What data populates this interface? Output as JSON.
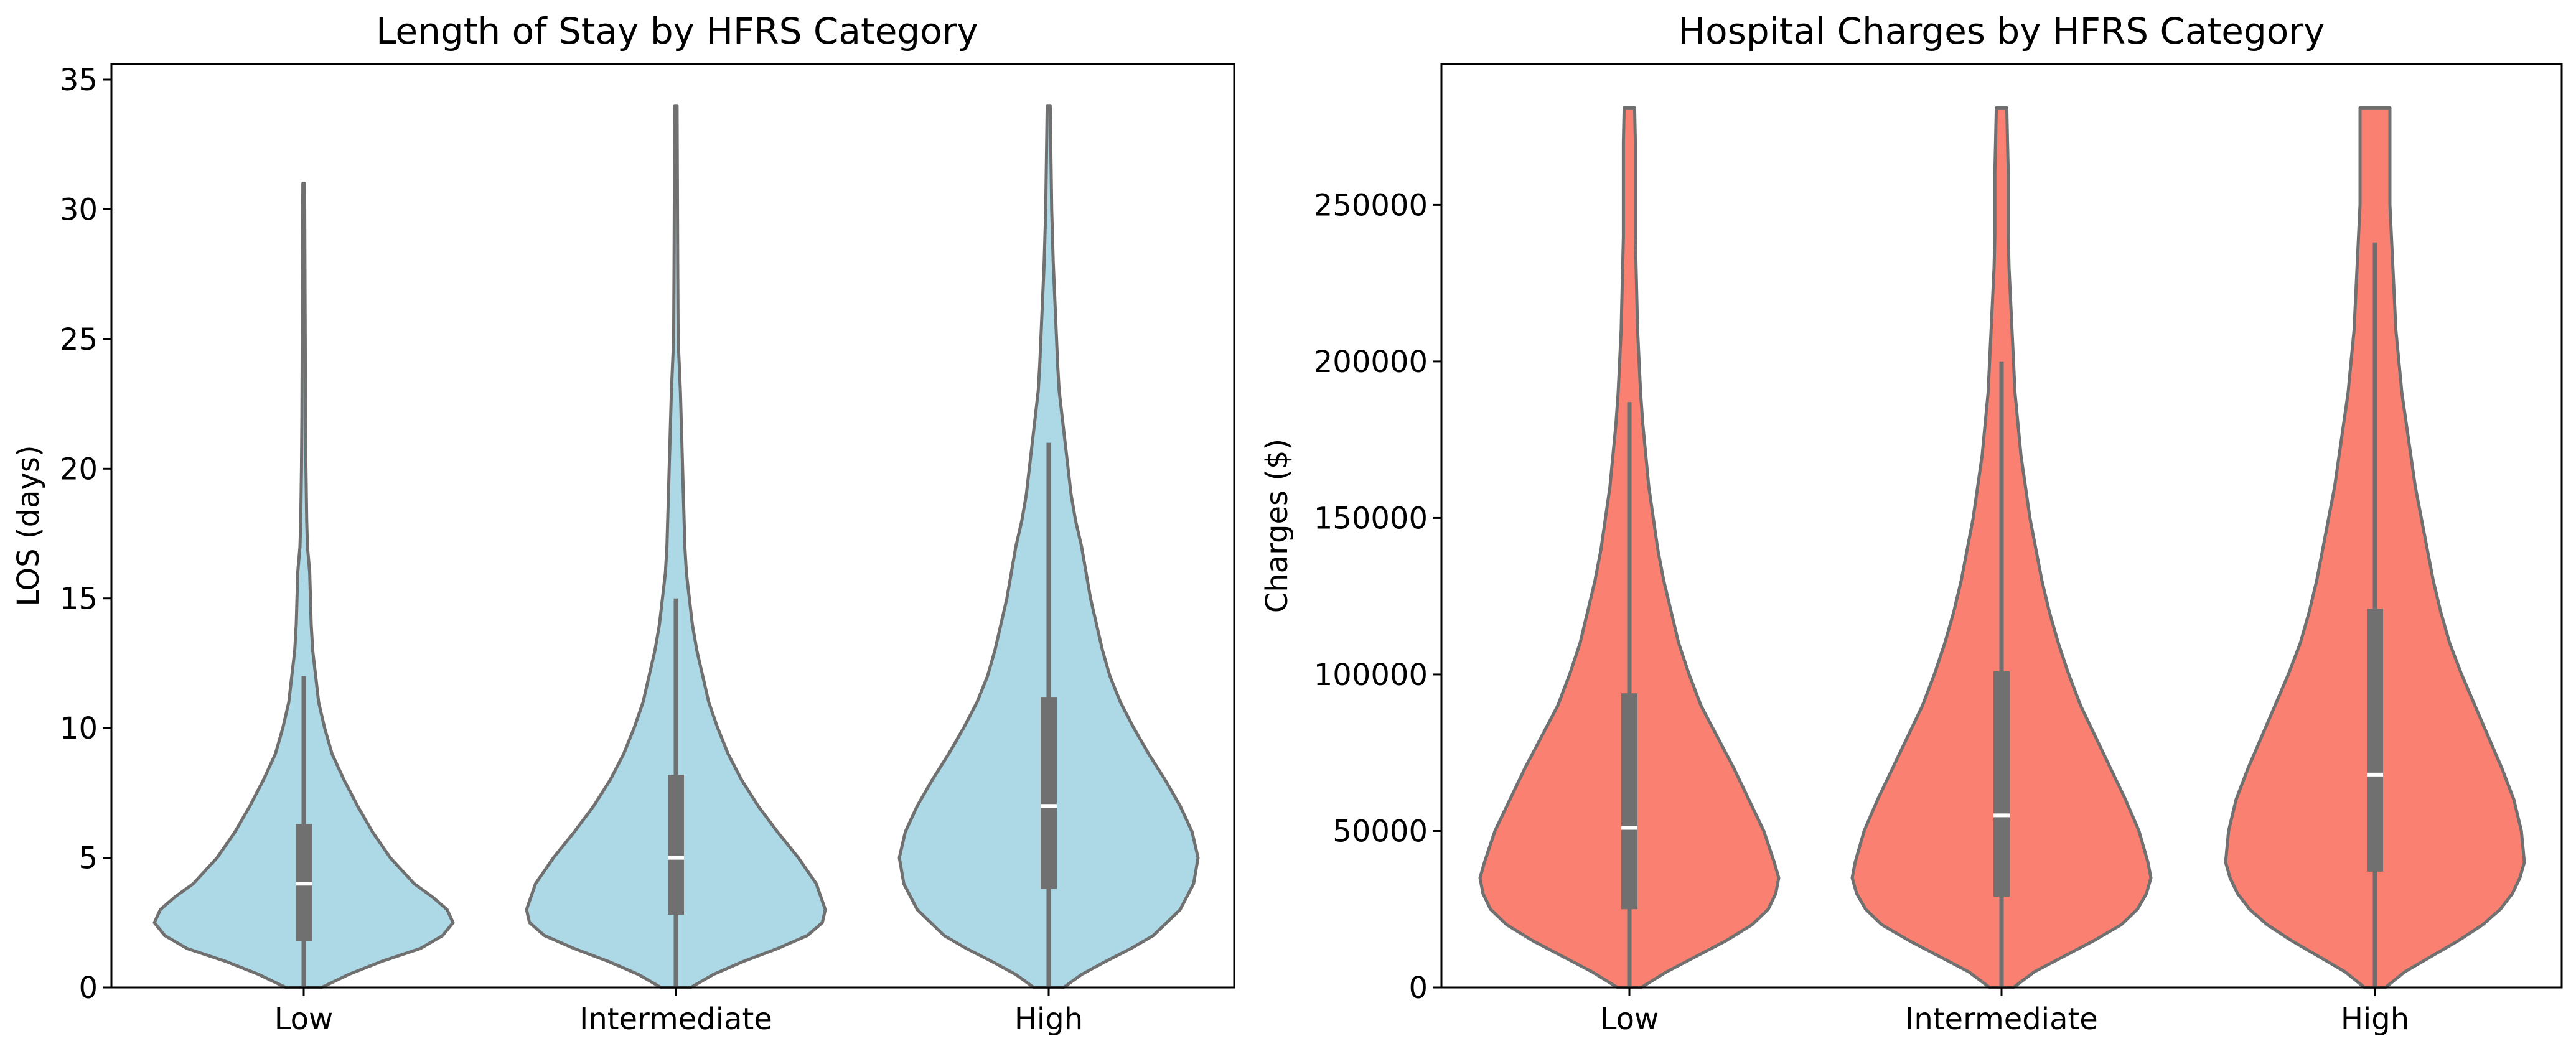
{
  "chart_data": [
    {
      "type": "violin",
      "title": "Length of Stay by HFRS Category",
      "xlabel": "",
      "ylabel": "LOS (days)",
      "ylim": [
        0,
        35.6
      ],
      "yticks": [
        0,
        5,
        10,
        15,
        20,
        25,
        30,
        35
      ],
      "ytick_labels": [
        "0",
        "5",
        "10",
        "15",
        "20",
        "25",
        "30",
        "35"
      ],
      "categories": [
        "Low",
        "Intermediate",
        "High"
      ],
      "fill_color": "#add8e6",
      "edge_color": "#707070",
      "series": [
        {
          "name": "Low",
          "whisker_low": 0,
          "q1": 1.8,
          "median": 4.0,
          "q3": 6.3,
          "whisker_high": 12.0,
          "max": 31,
          "density": [
            [
              0,
              0.12
            ],
            [
              0.5,
              0.3
            ],
            [
              1,
              0.52
            ],
            [
              1.5,
              0.78
            ],
            [
              2,
              0.93
            ],
            [
              2.5,
              1.0
            ],
            [
              3,
              0.96
            ],
            [
              3.5,
              0.86
            ],
            [
              4,
              0.74
            ],
            [
              5,
              0.58
            ],
            [
              6,
              0.46
            ],
            [
              7,
              0.36
            ],
            [
              8,
              0.27
            ],
            [
              9,
              0.19
            ],
            [
              10,
              0.14
            ],
            [
              11,
              0.1
            ],
            [
              12,
              0.08
            ],
            [
              13,
              0.06
            ],
            [
              14,
              0.05
            ],
            [
              15,
              0.045
            ],
            [
              16,
              0.04
            ],
            [
              17,
              0.025
            ],
            [
              18,
              0.02
            ],
            [
              20,
              0.015
            ],
            [
              22,
              0.012
            ],
            [
              25,
              0.01
            ],
            [
              28,
              0.008
            ],
            [
              31,
              0.006
            ]
          ]
        },
        {
          "name": "Intermediate",
          "whisker_low": 0,
          "q1": 2.8,
          "median": 5.0,
          "q3": 8.2,
          "whisker_high": 15.0,
          "max": 34,
          "density": [
            [
              0,
              0.1
            ],
            [
              0.5,
              0.25
            ],
            [
              1,
              0.45
            ],
            [
              1.5,
              0.68
            ],
            [
              2,
              0.88
            ],
            [
              2.5,
              0.98
            ],
            [
              3,
              1.0
            ],
            [
              4,
              0.94
            ],
            [
              5,
              0.82
            ],
            [
              6,
              0.68
            ],
            [
              7,
              0.55
            ],
            [
              8,
              0.44
            ],
            [
              9,
              0.35
            ],
            [
              10,
              0.28
            ],
            [
              11,
              0.22
            ],
            [
              12,
              0.18
            ],
            [
              13,
              0.14
            ],
            [
              14,
              0.11
            ],
            [
              15,
              0.09
            ],
            [
              16,
              0.07
            ],
            [
              17,
              0.06
            ],
            [
              19,
              0.05
            ],
            [
              21,
              0.04
            ],
            [
              23,
              0.03
            ],
            [
              25,
              0.015
            ],
            [
              28,
              0.012
            ],
            [
              31,
              0.01
            ],
            [
              34,
              0.008
            ]
          ]
        },
        {
          "name": "High",
          "whisker_low": 0,
          "q1": 3.8,
          "median": 7.0,
          "q3": 11.2,
          "whisker_high": 21.0,
          "max": 34,
          "density": [
            [
              0,
              0.1
            ],
            [
              0.5,
              0.22
            ],
            [
              1,
              0.38
            ],
            [
              1.5,
              0.55
            ],
            [
              2,
              0.7
            ],
            [
              3,
              0.88
            ],
            [
              4,
              0.97
            ],
            [
              5,
              1.0
            ],
            [
              6,
              0.96
            ],
            [
              7,
              0.88
            ],
            [
              8,
              0.78
            ],
            [
              9,
              0.67
            ],
            [
              10,
              0.57
            ],
            [
              11,
              0.48
            ],
            [
              12,
              0.41
            ],
            [
              13,
              0.36
            ],
            [
              14,
              0.32
            ],
            [
              15,
              0.28
            ],
            [
              16,
              0.25
            ],
            [
              17,
              0.22
            ],
            [
              18,
              0.18
            ],
            [
              19,
              0.15
            ],
            [
              20,
              0.13
            ],
            [
              21,
              0.11
            ],
            [
              22,
              0.09
            ],
            [
              23,
              0.07
            ],
            [
              24,
              0.06
            ],
            [
              26,
              0.045
            ],
            [
              28,
              0.03
            ],
            [
              30,
              0.02
            ],
            [
              32,
              0.015
            ],
            [
              34,
              0.01
            ]
          ]
        }
      ]
    },
    {
      "type": "violin",
      "title": "Hospital Charges by HFRS Category",
      "xlabel": "",
      "ylabel": "Charges ($)",
      "ylim": [
        0,
        295000
      ],
      "yticks": [
        0,
        50000,
        100000,
        150000,
        200000,
        250000
      ],
      "ytick_labels": [
        "0",
        "50000",
        "100000",
        "150000",
        "200000",
        "250000"
      ],
      "categories": [
        "Low",
        "Intermediate",
        "High"
      ],
      "fill_color": "#fa8072",
      "edge_color": "#707070",
      "series": [
        {
          "name": "Low",
          "whisker_low": 0,
          "q1": 25000,
          "median": 51000,
          "q3": 94000,
          "whisker_high": 187000,
          "max": 281000,
          "density": [
            [
              0,
              0.08
            ],
            [
              5000,
              0.25
            ],
            [
              10000,
              0.45
            ],
            [
              15000,
              0.65
            ],
            [
              20000,
              0.82
            ],
            [
              25000,
              0.93
            ],
            [
              30000,
              0.98
            ],
            [
              35000,
              1.0
            ],
            [
              40000,
              0.97
            ],
            [
              50000,
              0.9
            ],
            [
              60000,
              0.8
            ],
            [
              70000,
              0.7
            ],
            [
              80000,
              0.59
            ],
            [
              90000,
              0.48
            ],
            [
              100000,
              0.4
            ],
            [
              110000,
              0.33
            ],
            [
              120000,
              0.28
            ],
            [
              130000,
              0.23
            ],
            [
              140000,
              0.19
            ],
            [
              150000,
              0.16
            ],
            [
              160000,
              0.13
            ],
            [
              170000,
              0.11
            ],
            [
              180000,
              0.09
            ],
            [
              190000,
              0.075
            ],
            [
              200000,
              0.065
            ],
            [
              210000,
              0.055
            ],
            [
              220000,
              0.05
            ],
            [
              230000,
              0.045
            ],
            [
              240000,
              0.04
            ],
            [
              250000,
              0.04
            ],
            [
              260000,
              0.04
            ],
            [
              270000,
              0.04
            ],
            [
              281000,
              0.035
            ]
          ]
        },
        {
          "name": "Intermediate",
          "whisker_low": 0,
          "q1": 29000,
          "median": 55000,
          "q3": 101000,
          "whisker_high": 200000,
          "max": 281000,
          "density": [
            [
              0,
              0.08
            ],
            [
              5000,
              0.22
            ],
            [
              10000,
              0.42
            ],
            [
              15000,
              0.62
            ],
            [
              20000,
              0.8
            ],
            [
              25000,
              0.91
            ],
            [
              30000,
              0.97
            ],
            [
              35000,
              1.0
            ],
            [
              40000,
              0.98
            ],
            [
              50000,
              0.92
            ],
            [
              60000,
              0.83
            ],
            [
              70000,
              0.73
            ],
            [
              80000,
              0.63
            ],
            [
              90000,
              0.53
            ],
            [
              100000,
              0.45
            ],
            [
              110000,
              0.38
            ],
            [
              120000,
              0.32
            ],
            [
              130000,
              0.27
            ],
            [
              140000,
              0.23
            ],
            [
              150000,
              0.19
            ],
            [
              160000,
              0.16
            ],
            [
              170000,
              0.13
            ],
            [
              180000,
              0.11
            ],
            [
              190000,
              0.09
            ],
            [
              200000,
              0.08
            ],
            [
              210000,
              0.07
            ],
            [
              220000,
              0.06
            ],
            [
              230000,
              0.05
            ],
            [
              240000,
              0.045
            ],
            [
              250000,
              0.045
            ],
            [
              260000,
              0.045
            ],
            [
              270000,
              0.04
            ],
            [
              281000,
              0.035
            ]
          ]
        },
        {
          "name": "High",
          "whisker_low": 0,
          "q1": 37000,
          "median": 68000,
          "q3": 121000,
          "whisker_high": 238000,
          "max": 281000,
          "density": [
            [
              0,
              0.07
            ],
            [
              5000,
              0.2
            ],
            [
              10000,
              0.38
            ],
            [
              15000,
              0.56
            ],
            [
              20000,
              0.72
            ],
            [
              25000,
              0.84
            ],
            [
              30000,
              0.92
            ],
            [
              35000,
              0.97
            ],
            [
              40000,
              1.0
            ],
            [
              50000,
              0.98
            ],
            [
              60000,
              0.93
            ],
            [
              70000,
              0.85
            ],
            [
              80000,
              0.76
            ],
            [
              90000,
              0.67
            ],
            [
              100000,
              0.58
            ],
            [
              110000,
              0.5
            ],
            [
              120000,
              0.44
            ],
            [
              130000,
              0.39
            ],
            [
              140000,
              0.35
            ],
            [
              150000,
              0.31
            ],
            [
              160000,
              0.27
            ],
            [
              170000,
              0.24
            ],
            [
              180000,
              0.21
            ],
            [
              190000,
              0.18
            ],
            [
              200000,
              0.16
            ],
            [
              210000,
              0.14
            ],
            [
              220000,
              0.13
            ],
            [
              230000,
              0.12
            ],
            [
              240000,
              0.11
            ],
            [
              250000,
              0.1
            ],
            [
              260000,
              0.1
            ],
            [
              270000,
              0.1
            ],
            [
              281000,
              0.1
            ]
          ]
        }
      ]
    }
  ]
}
